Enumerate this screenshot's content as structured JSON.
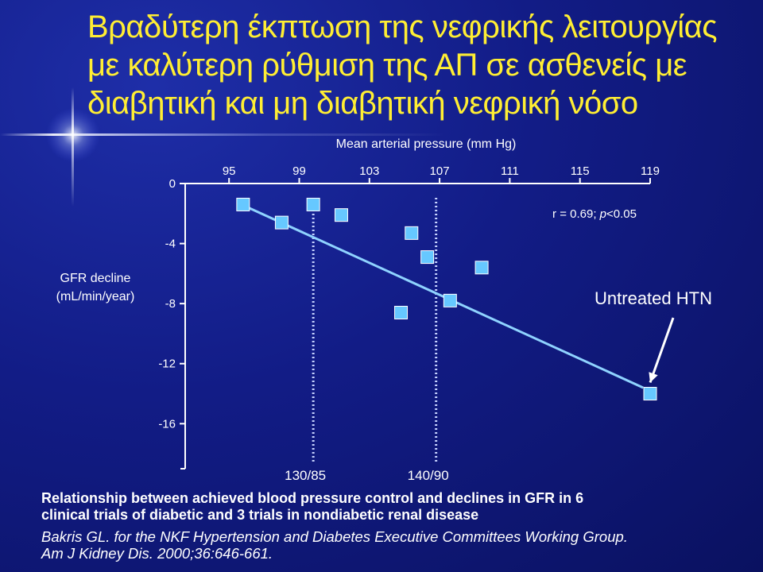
{
  "slide": {
    "title_lines": [
      "Βραδύτερη έκπτωση της νεφρικής λειτουργίας",
      "με καλύτερη ρύθμιση της ΑΠ σε ασθενείς με",
      "διαβητική και μη διαβητική νεφρική νόσο"
    ],
    "caption_lines": [
      "Relationship between achieved blood pressure control and declines in GFR in 6",
      "clinical trials of diabetic and 3 trials in nondiabetic renal disease"
    ],
    "citation_lines": [
      "Bakris GL.  for the NKF Hypertension and Diabetes Executive Committees Working Group.",
      "Am J Kidney Dis. 2000;36:646-661."
    ]
  },
  "colors": {
    "title": "#ffee33",
    "marker": "#66c8ff",
    "regression_line": "#8fd3ff",
    "axis": "#ffffff"
  },
  "chart_data": {
    "type": "scatter",
    "xlabel": "Mean arterial pressure (mm Hg)",
    "ylabel": "GFR decline (mL/min/year)",
    "x_ticks": [
      95,
      99,
      103,
      107,
      111,
      115,
      119
    ],
    "y_ticks": [
      0,
      -4,
      -8,
      -12,
      -16
    ],
    "xlim": [
      92.5,
      119
    ],
    "ylim": [
      -19,
      0
    ],
    "x_axis_position": "top",
    "grid": false,
    "points": [
      {
        "x": 95.8,
        "y": -1.4
      },
      {
        "x": 98.0,
        "y": -2.6
      },
      {
        "x": 99.8,
        "y": -1.4
      },
      {
        "x": 101.4,
        "y": -2.1
      },
      {
        "x": 104.8,
        "y": -8.6
      },
      {
        "x": 105.4,
        "y": -3.3
      },
      {
        "x": 106.3,
        "y": -4.9
      },
      {
        "x": 107.6,
        "y": -7.8
      },
      {
        "x": 109.4,
        "y": -5.6
      },
      {
        "x": 119.0,
        "y": -14.0
      }
    ],
    "regression": {
      "x": [
        95.9,
        118.6
      ],
      "y": [
        -1.5,
        -13.6
      ]
    },
    "stat_label": "r = 0.69;",
    "stat_p": "p",
    "stat_value": "<0.05",
    "reference_lines": [
      {
        "x": 99.8,
        "label": "130/85"
      },
      {
        "x": 106.8,
        "label": "140/90"
      }
    ],
    "annotation": {
      "text": "Untreated HTN",
      "x": 119.0,
      "y": -14.0
    }
  }
}
